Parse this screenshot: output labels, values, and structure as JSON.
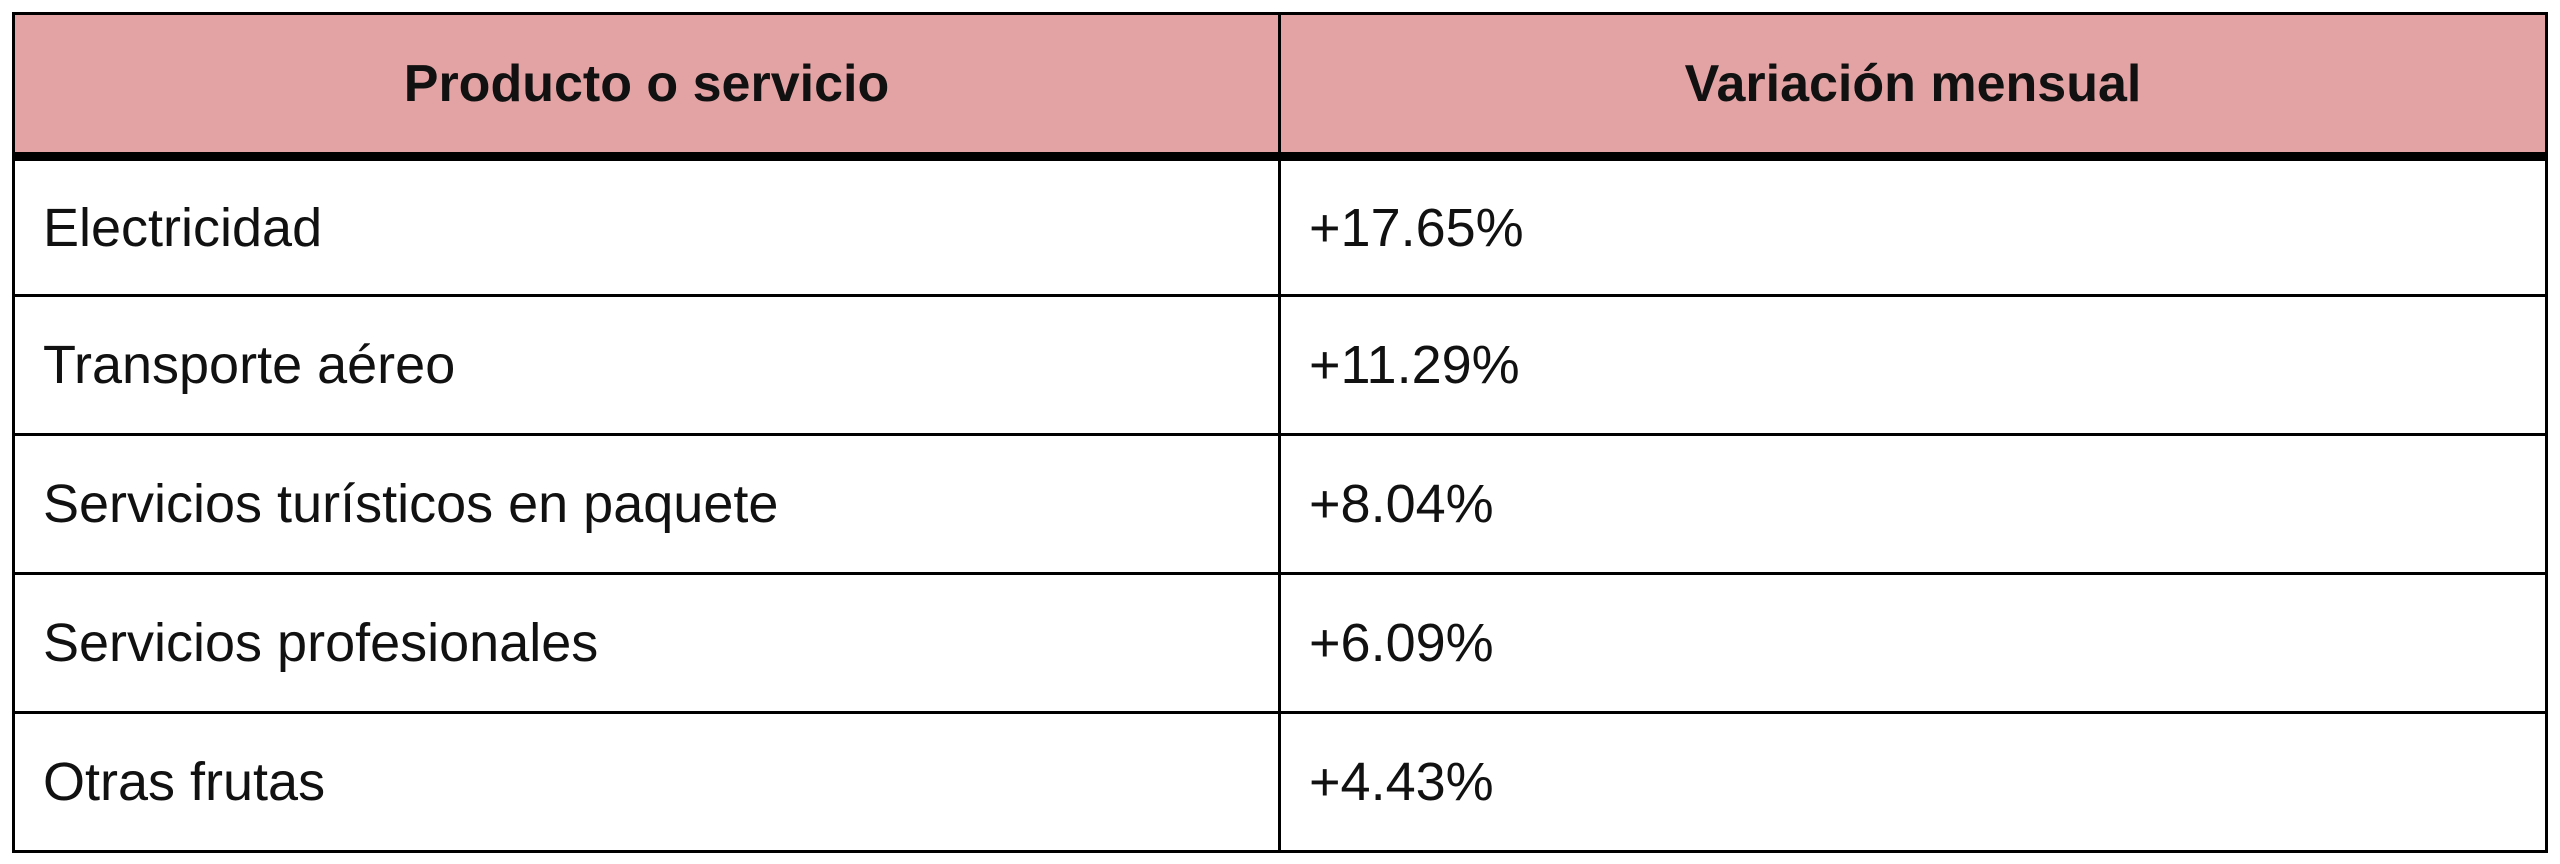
{
  "table": {
    "header": [
      "Producto o servicio",
      "Variación mensual"
    ],
    "rows": [
      [
        "Electricidad",
        "+17.65%"
      ],
      [
        "Transporte aéreo",
        "+11.29%"
      ],
      [
        "Servicios turísticos en paquete",
        "+8.04%"
      ],
      [
        "Servicios profesionales",
        "+6.09%"
      ],
      [
        "Otras frutas",
        "+4.43%"
      ]
    ]
  }
}
